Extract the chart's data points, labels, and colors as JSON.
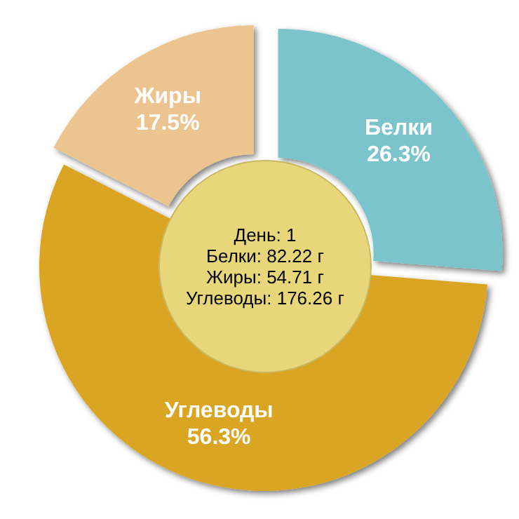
{
  "chart_data": {
    "type": "donut",
    "categories": [
      "Белки",
      "Углеводы",
      "Жиры"
    ],
    "values": [
      26.3,
      56.3,
      17.5
    ],
    "value_labels": [
      "26.3%",
      "56.3%",
      "17.5%"
    ],
    "colors": [
      "#7bc4cc",
      "#daa520",
      "#ecc490"
    ],
    "annotations": [
      "День: 1",
      "Белки: 82.22 г",
      "Жиры: 54.71 г",
      "Углеводы: 176.26 г"
    ]
  }
}
